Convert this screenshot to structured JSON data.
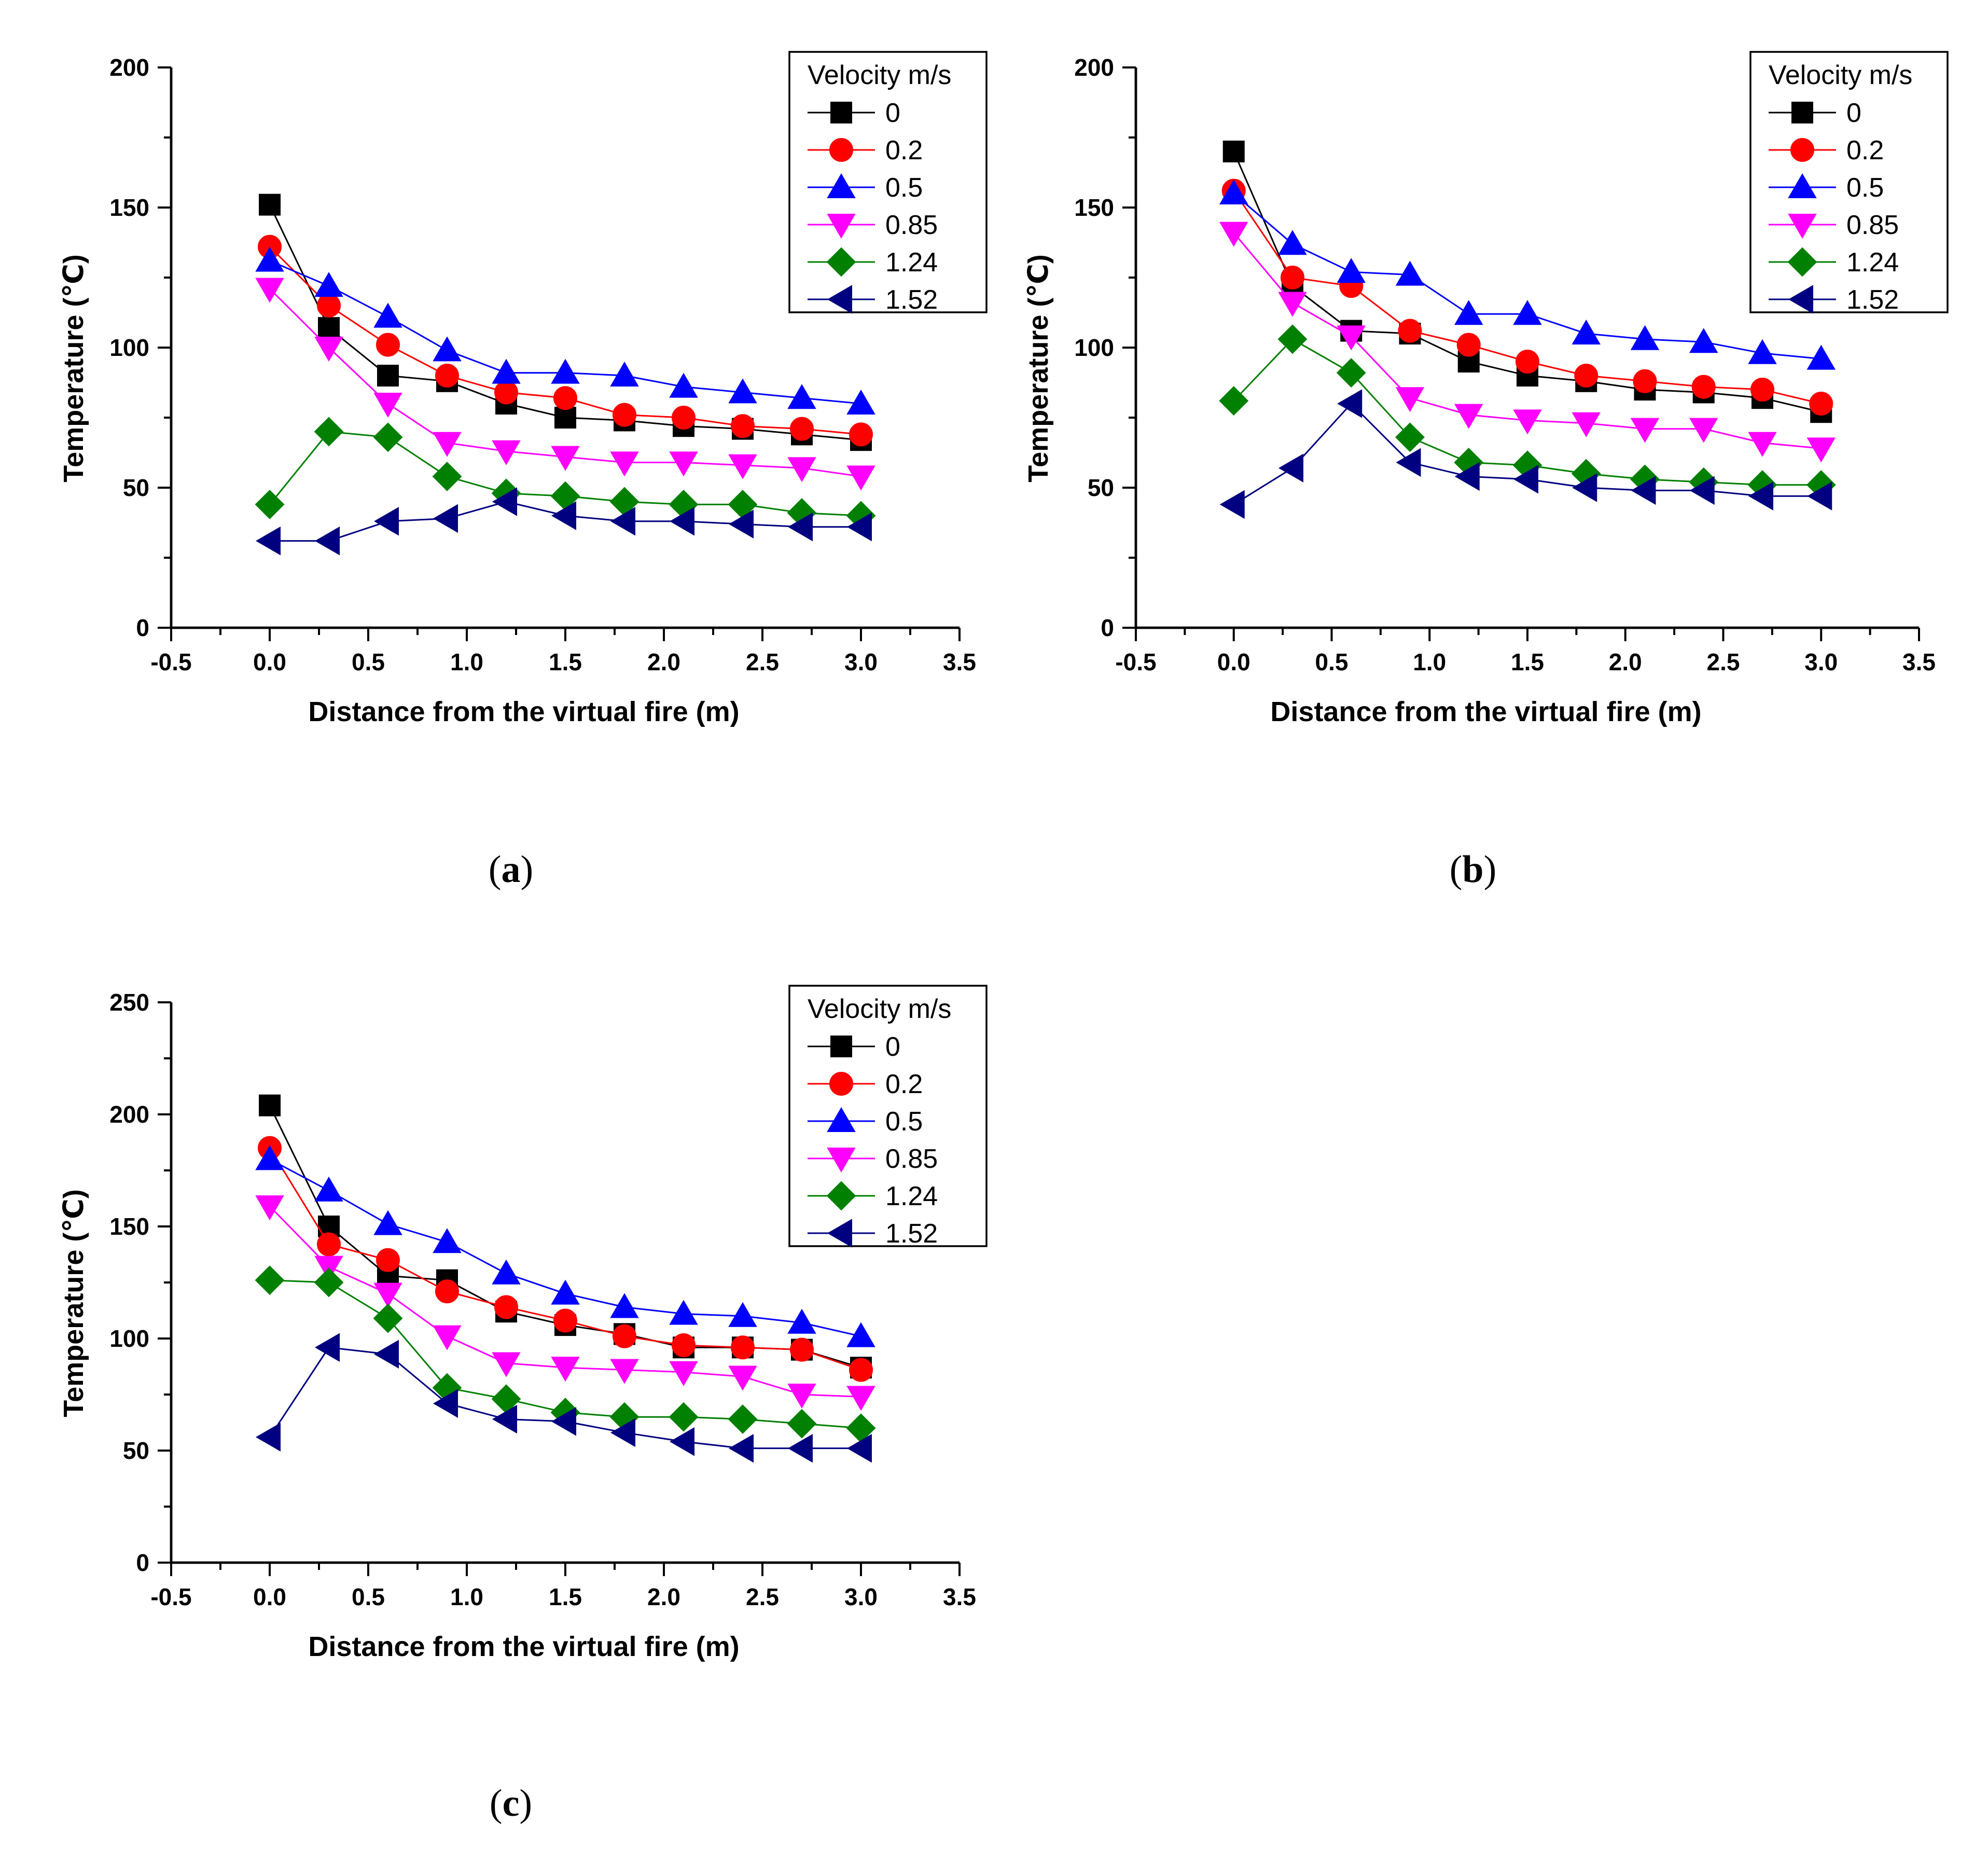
{
  "colors": {
    "0": "#000000",
    "0.2": "#ff0000",
    "0.5": "#0000ff",
    "0.85": "#ff00ff",
    "1.24": "#008000",
    "1.52": "#000080"
  },
  "chart_data": [
    {
      "type": "line",
      "panel": "a",
      "caption_open": "(",
      "caption_letter": "a",
      "caption_close": ")",
      "xlabel": "Distance from the virtual fire (m)",
      "ylabel": "Temperature (℃)",
      "xlim": [
        -0.5,
        3.5
      ],
      "ylim": [
        0,
        200
      ],
      "xticks": [
        "-0.5",
        "0.0",
        "0.5",
        "1.0",
        "1.5",
        "2.0",
        "2.5",
        "3.0",
        "3.5"
      ],
      "yticks": [
        "0",
        "50",
        "100",
        "150",
        "200"
      ],
      "legend_title": "Velocity m/s",
      "legend_position": "top-right",
      "x": [
        0.0,
        0.3,
        0.6,
        0.9,
        1.2,
        1.5,
        1.8,
        2.1,
        2.4,
        2.7,
        3.0
      ],
      "series": [
        {
          "name": "0",
          "marker": "square",
          "values": [
            151,
            107,
            90,
            88,
            80,
            75,
            74,
            72,
            71,
            69,
            67
          ]
        },
        {
          "name": "0.2",
          "marker": "circle",
          "values": [
            136,
            115,
            101,
            90,
            84,
            82,
            76,
            75,
            72,
            71,
            69
          ]
        },
        {
          "name": "0.5",
          "marker": "triangle-up",
          "values": [
            131,
            122,
            111,
            99,
            91,
            91,
            90,
            86,
            84,
            82,
            80
          ]
        },
        {
          "name": "0.85",
          "marker": "triangle-down",
          "values": [
            121,
            100,
            80,
            66,
            63,
            61,
            59,
            59,
            58,
            57,
            54
          ]
        },
        {
          "name": "1.24",
          "marker": "diamond",
          "values": [
            44,
            70,
            68,
            54,
            48,
            47,
            45,
            44,
            44,
            41,
            40
          ]
        },
        {
          "name": "1.52",
          "marker": "triangle-left",
          "values": [
            31,
            31,
            38,
            39,
            45,
            40,
            38,
            38,
            37,
            36,
            36
          ]
        }
      ]
    },
    {
      "type": "line",
      "panel": "b",
      "caption_open": "(",
      "caption_letter": "b",
      "caption_close": ")",
      "xlabel": "Distance from the virtual fire (m)",
      "ylabel": "Temperature (℃)",
      "xlim": [
        -0.5,
        3.5
      ],
      "ylim": [
        0,
        200
      ],
      "xticks": [
        "-0.5",
        "0.0",
        "0.5",
        "1.0",
        "1.5",
        "2.0",
        "2.5",
        "3.0",
        "3.5"
      ],
      "yticks": [
        "0",
        "50",
        "100",
        "150",
        "200"
      ],
      "legend_title": "Velocity m/s",
      "legend_position": "top-right",
      "x": [
        0.0,
        0.3,
        0.6,
        0.9,
        1.2,
        1.5,
        1.8,
        2.1,
        2.4,
        2.7,
        3.0
      ],
      "series": [
        {
          "name": "0",
          "marker": "square",
          "values": [
            170,
            122,
            106,
            105,
            95,
            90,
            88,
            85,
            84,
            82,
            77
          ]
        },
        {
          "name": "0.2",
          "marker": "circle",
          "values": [
            156,
            125,
            122,
            106,
            101,
            95,
            90,
            88,
            86,
            85,
            80
          ]
        },
        {
          "name": "0.5",
          "marker": "triangle-up",
          "values": [
            155,
            137,
            127,
            126,
            112,
            112,
            105,
            103,
            102,
            98,
            96
          ]
        },
        {
          "name": "0.85",
          "marker": "triangle-down",
          "values": [
            141,
            116,
            104,
            82,
            76,
            74,
            73,
            71,
            71,
            66,
            64
          ]
        },
        {
          "name": "1.24",
          "marker": "diamond",
          "values": [
            81,
            103,
            91,
            68,
            59,
            58,
            55,
            53,
            52,
            51,
            51
          ]
        },
        {
          "name": "1.52",
          "marker": "triangle-left",
          "values": [
            44,
            57,
            80,
            59,
            54,
            53,
            50,
            49,
            49,
            47,
            47
          ]
        }
      ]
    },
    {
      "type": "line",
      "panel": "c",
      "caption_open": "(",
      "caption_letter": "c",
      "caption_close": ")",
      "xlabel": "Distance from the virtual fire (m)",
      "ylabel": "Temperature (℃)",
      "xlim": [
        -0.5,
        3.5
      ],
      "ylim": [
        0,
        250
      ],
      "xticks": [
        "-0.5",
        "0.0",
        "0.5",
        "1.0",
        "1.5",
        "2.0",
        "2.5",
        "3.0",
        "3.5"
      ],
      "yticks": [
        "0",
        "50",
        "100",
        "150",
        "200",
        "250"
      ],
      "legend_title": "Velocity m/s",
      "legend_position": "top-right",
      "x": [
        0.0,
        0.3,
        0.6,
        0.9,
        1.2,
        1.5,
        1.8,
        2.1,
        2.4,
        2.7,
        3.0
      ],
      "series": [
        {
          "name": "0",
          "marker": "square",
          "values": [
            204,
            150,
            128,
            126,
            112,
            106,
            102,
            96,
            96,
            95,
            87
          ]
        },
        {
          "name": "0.2",
          "marker": "circle",
          "values": [
            185,
            142,
            135,
            121,
            114,
            108,
            101,
            97,
            96,
            95,
            86
          ]
        },
        {
          "name": "0.5",
          "marker": "triangle-up",
          "values": [
            180,
            166,
            151,
            143,
            129,
            120,
            114,
            111,
            110,
            107,
            101
          ]
        },
        {
          "name": "0.85",
          "marker": "triangle-down",
          "values": [
            159,
            132,
            120,
            101,
            89,
            87,
            86,
            85,
            83,
            75,
            74
          ]
        },
        {
          "name": "1.24",
          "marker": "diamond",
          "values": [
            126,
            125,
            109,
            78,
            73,
            67,
            65,
            65,
            64,
            62,
            60
          ]
        },
        {
          "name": "1.52",
          "marker": "triangle-left",
          "values": [
            56,
            96,
            93,
            71,
            64,
            63,
            58,
            54,
            51,
            51,
            51
          ]
        }
      ]
    }
  ]
}
